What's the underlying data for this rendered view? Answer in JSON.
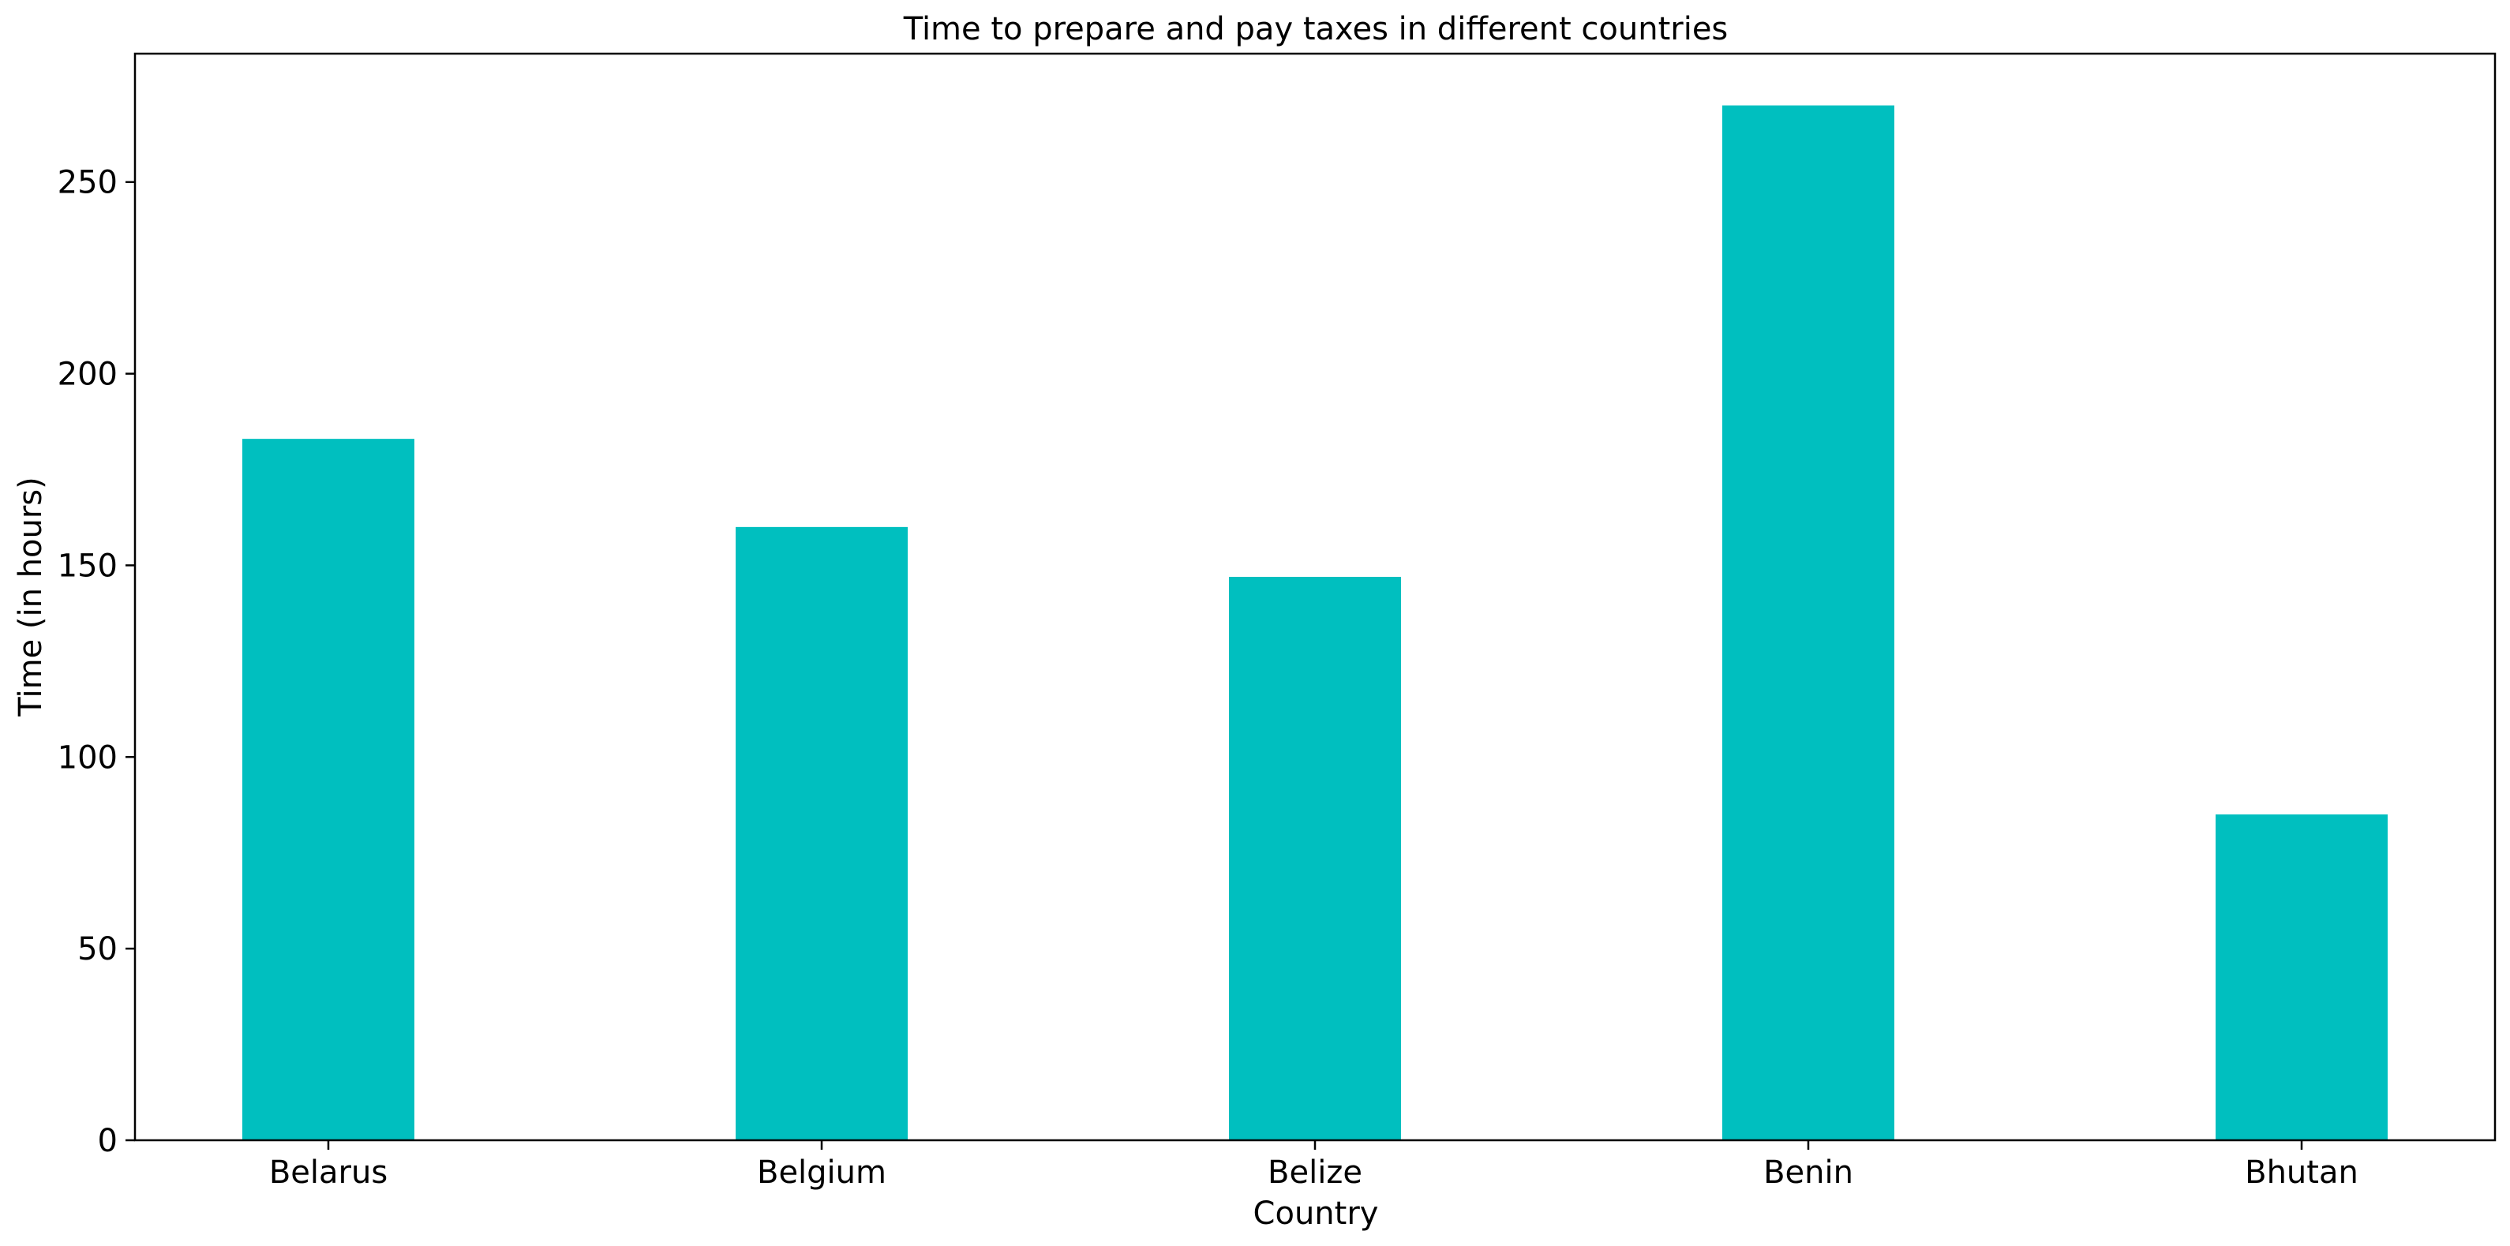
{
  "chart_data": {
    "type": "bar",
    "title": "Time to prepare and pay taxes in different countries",
    "xlabel": "Country",
    "ylabel": "Time (in hours)",
    "categories": [
      "Belarus",
      "Belgium",
      "Belize",
      "Benin",
      "Bhutan"
    ],
    "values": [
      183,
      160,
      147,
      270,
      85
    ],
    "ylim": [
      0,
      283.5
    ],
    "yticks": [
      0,
      50,
      100,
      150,
      200,
      250
    ],
    "grid": false,
    "bar_color": "#00bfbf"
  }
}
